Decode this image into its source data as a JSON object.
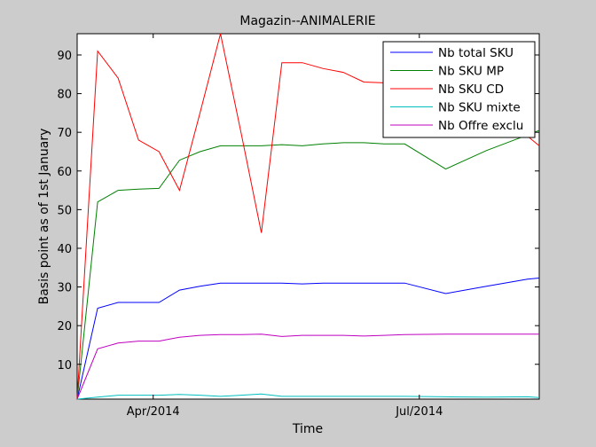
{
  "chart_data": {
    "type": "line",
    "title": "Magazin--ANIMALERIE",
    "xlabel": "Time",
    "ylabel": "Basis point as of 1st January",
    "xlim": [
      "2014-03-06",
      "2014-08-11"
    ],
    "ylim": [
      1,
      95.5
    ],
    "x_ticks": [
      {
        "value": "2014-04-01",
        "label": "Apr/2014"
      },
      {
        "value": "2014-07-01",
        "label": "Jul/2014"
      }
    ],
    "y_ticks": [
      10,
      20,
      30,
      40,
      50,
      60,
      70,
      80,
      90
    ],
    "grid": false,
    "legend_position": "top-right",
    "series": [
      {
        "name": "Nb total SKU",
        "color": "#0000ff",
        "x": [
          "2014-03-06",
          "2014-03-13",
          "2014-03-20",
          "2014-03-27",
          "2014-04-03",
          "2014-04-10",
          "2014-04-17",
          "2014-04-24",
          "2014-05-01",
          "2014-05-08",
          "2014-05-15",
          "2014-05-22",
          "2014-05-29",
          "2014-06-05",
          "2014-06-12",
          "2014-06-19",
          "2014-06-26",
          "2014-07-10",
          "2014-07-24",
          "2014-08-07",
          "2014-08-11"
        ],
        "y": [
          1,
          24.5,
          26,
          26,
          26,
          29.2,
          30.2,
          31,
          31,
          31,
          31,
          30.8,
          31,
          31,
          31,
          31,
          31,
          28.3,
          30.2,
          32,
          32.3
        ]
      },
      {
        "name": "Nb SKU MP",
        "color": "#008000",
        "x": [
          "2014-03-06",
          "2014-03-13",
          "2014-03-20",
          "2014-03-27",
          "2014-04-03",
          "2014-04-10",
          "2014-04-17",
          "2014-04-24",
          "2014-05-01",
          "2014-05-08",
          "2014-05-15",
          "2014-05-22",
          "2014-05-29",
          "2014-06-05",
          "2014-06-12",
          "2014-06-19",
          "2014-06-26",
          "2014-07-10",
          "2014-07-24",
          "2014-08-07",
          "2014-08-11"
        ],
        "y": [
          1,
          52,
          55,
          55.3,
          55.5,
          62.8,
          65,
          66.5,
          66.5,
          66.5,
          66.8,
          66.5,
          67,
          67.3,
          67.3,
          67,
          67,
          60.5,
          65.3,
          69.3,
          70.5
        ]
      },
      {
        "name": "Nb SKU CD",
        "color": "#ff0000",
        "x": [
          "2014-03-06",
          "2014-03-13",
          "2014-03-20",
          "2014-03-27",
          "2014-04-03",
          "2014-04-10",
          "2014-04-17",
          "2014-04-24",
          "2014-05-01",
          "2014-05-08",
          "2014-05-15",
          "2014-05-22",
          "2014-05-29",
          "2014-06-05",
          "2014-06-12",
          "2014-06-19",
          "2014-06-26",
          "2014-07-10",
          "2014-07-24",
          "2014-08-07",
          "2014-08-11"
        ],
        "y": [
          1,
          91,
          84,
          68,
          65,
          55,
          75,
          95.5,
          70,
          44,
          88,
          88,
          86.5,
          85.5,
          83,
          82.8,
          81.5,
          81,
          75,
          69,
          66.5
        ]
      },
      {
        "name": "Nb SKU mixte",
        "color": "#00bfbf",
        "x": [
          "2014-03-06",
          "2014-03-13",
          "2014-03-20",
          "2014-03-27",
          "2014-04-03",
          "2014-04-10",
          "2014-04-17",
          "2014-04-24",
          "2014-05-01",
          "2014-05-08",
          "2014-05-15",
          "2014-05-22",
          "2014-05-29",
          "2014-06-05",
          "2014-06-12",
          "2014-06-19",
          "2014-06-26",
          "2014-07-10",
          "2014-07-24",
          "2014-08-07",
          "2014-08-11"
        ],
        "y": [
          1,
          1.5,
          2,
          2,
          2,
          2.2,
          2,
          1.7,
          2,
          2.3,
          1.7,
          1.7,
          1.7,
          1.7,
          1.7,
          1.7,
          1.7,
          1.6,
          1.5,
          1.6,
          1.4
        ]
      },
      {
        "name": "Nb Offre exclu",
        "color": "#bf00bf",
        "x": [
          "2014-03-06",
          "2014-03-13",
          "2014-03-20",
          "2014-03-27",
          "2014-04-03",
          "2014-04-10",
          "2014-04-17",
          "2014-04-24",
          "2014-05-01",
          "2014-05-08",
          "2014-05-15",
          "2014-05-22",
          "2014-05-29",
          "2014-06-05",
          "2014-06-12",
          "2014-06-19",
          "2014-06-26",
          "2014-07-10",
          "2014-07-24",
          "2014-08-07",
          "2014-08-11"
        ],
        "y": [
          1,
          14,
          15.5,
          16,
          16,
          17,
          17.5,
          17.7,
          17.7,
          17.8,
          17.2,
          17.5,
          17.5,
          17.5,
          17.3,
          17.5,
          17.7,
          17.8,
          17.8,
          17.8,
          17.8
        ]
      }
    ]
  }
}
